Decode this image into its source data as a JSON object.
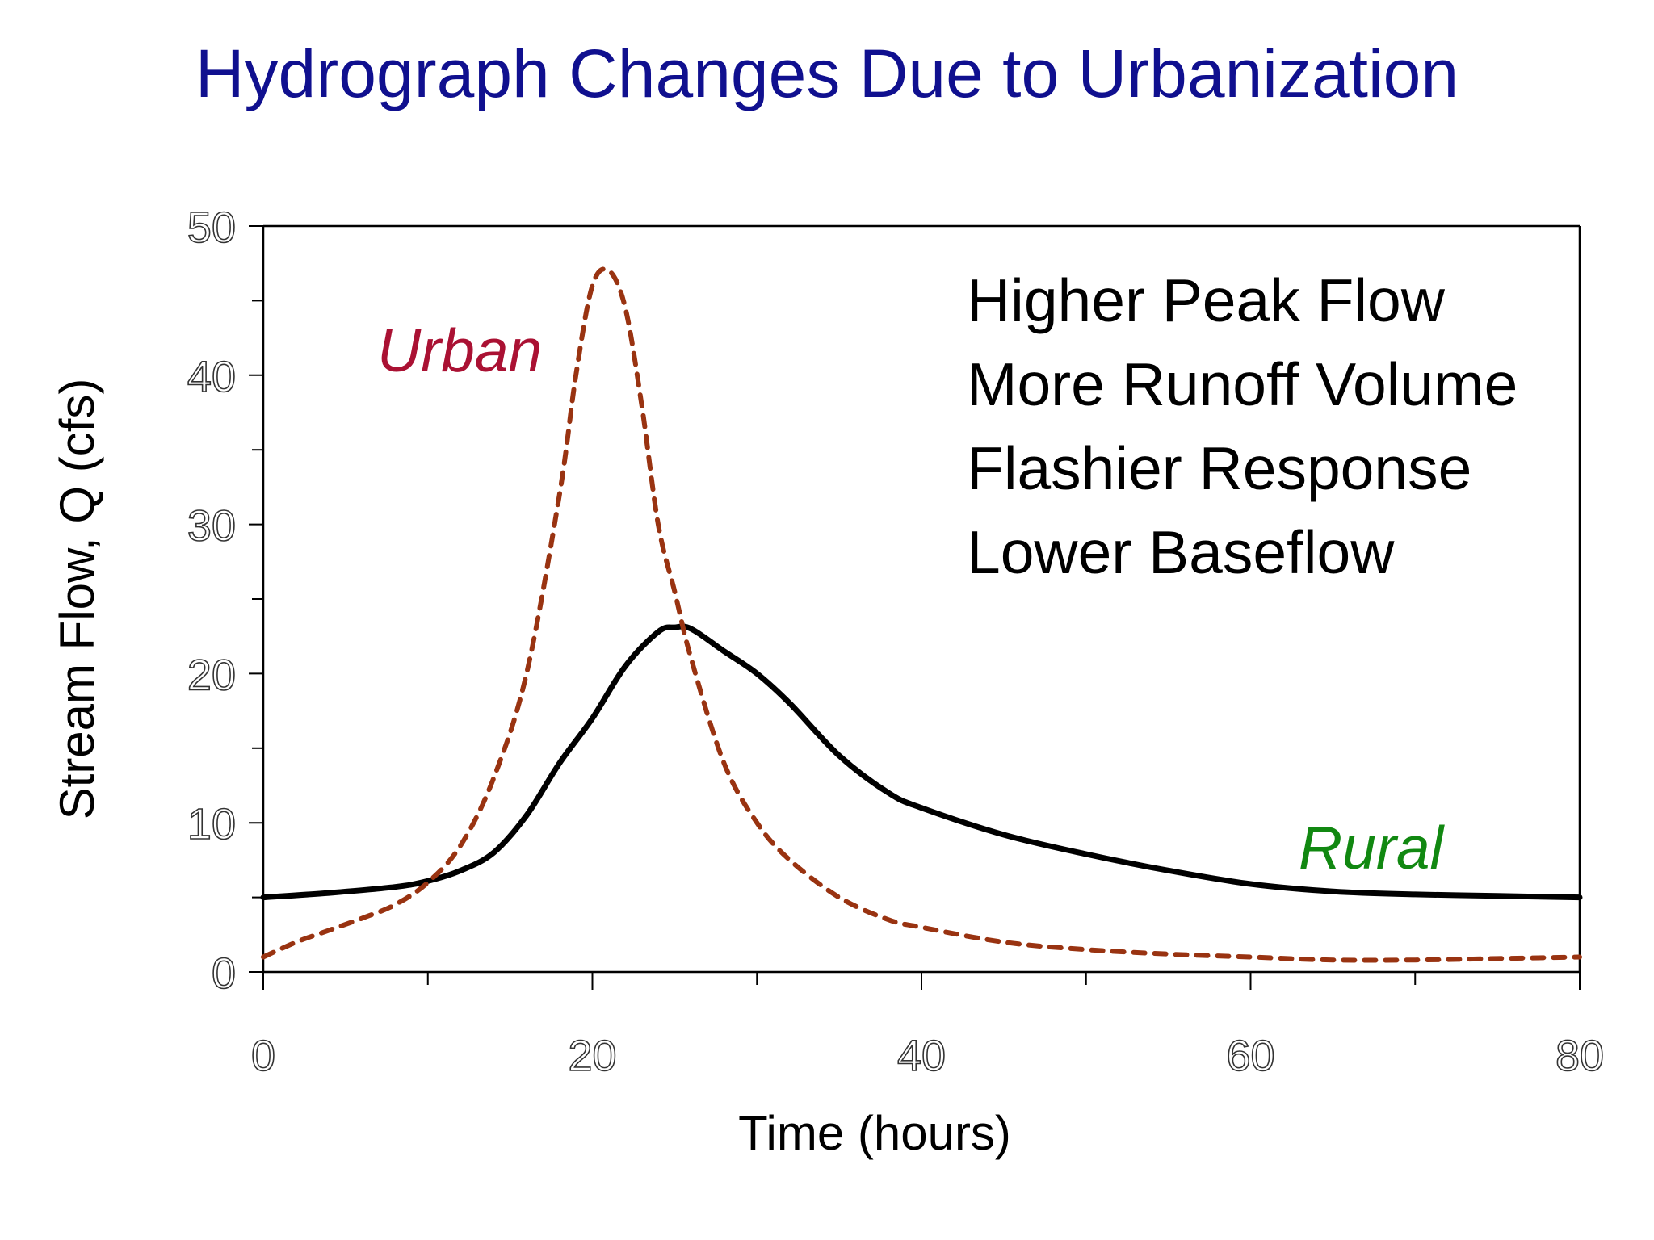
{
  "chart_data": {
    "type": "line",
    "title": "Hydrograph Changes Due to Urbanization",
    "xlabel": "Time (hours)",
    "ylabel": "Stream Flow, Q  (cfs)",
    "xlim": [
      0,
      80
    ],
    "ylim": [
      0,
      50
    ],
    "x_ticks": [
      "0",
      "20",
      "40",
      "60",
      "80"
    ],
    "y_ticks": [
      "0",
      "10",
      "20",
      "30",
      "40",
      "50"
    ],
    "grid": false,
    "annotations": [
      "Higher Peak Flow",
      "More Runoff Volume",
      "Flashier Response",
      "Lower Baseflow"
    ],
    "series": [
      {
        "name": "Urban",
        "color": "#993311",
        "style": "dashed",
        "label_color": "#aa1133",
        "x": [
          0,
          2,
          4,
          6,
          8,
          10,
          12,
          14,
          16,
          18,
          19,
          20,
          21,
          22,
          23,
          24,
          25,
          26,
          28,
          30,
          32,
          35,
          38,
          40,
          45,
          50,
          55,
          60,
          65,
          70,
          75,
          80
        ],
        "y": [
          1,
          2,
          2.8,
          3.6,
          4.5,
          6,
          8.5,
          13,
          20,
          32,
          40,
          46,
          47,
          44.5,
          38,
          30,
          25.5,
          21,
          14,
          10,
          7.5,
          5,
          3.5,
          3,
          2,
          1.5,
          1.2,
          1,
          0.8,
          0.8,
          0.9,
          1
        ]
      },
      {
        "name": "Rural",
        "color": "#000000",
        "style": "solid",
        "label_color": "#118811",
        "x": [
          0,
          4,
          8,
          10,
          12,
          14,
          16,
          18,
          20,
          22,
          24,
          25,
          26,
          28,
          30,
          32,
          35,
          38,
          40,
          45,
          50,
          55,
          60,
          65,
          70,
          75,
          80
        ],
        "y": [
          5,
          5.3,
          5.7,
          6.1,
          6.8,
          8,
          10.5,
          14,
          17,
          20.5,
          22.8,
          23.1,
          23,
          21.5,
          20,
          18,
          14.5,
          12,
          11,
          9.2,
          7.9,
          6.8,
          5.9,
          5.4,
          5.2,
          5.1,
          5
        ]
      }
    ]
  }
}
